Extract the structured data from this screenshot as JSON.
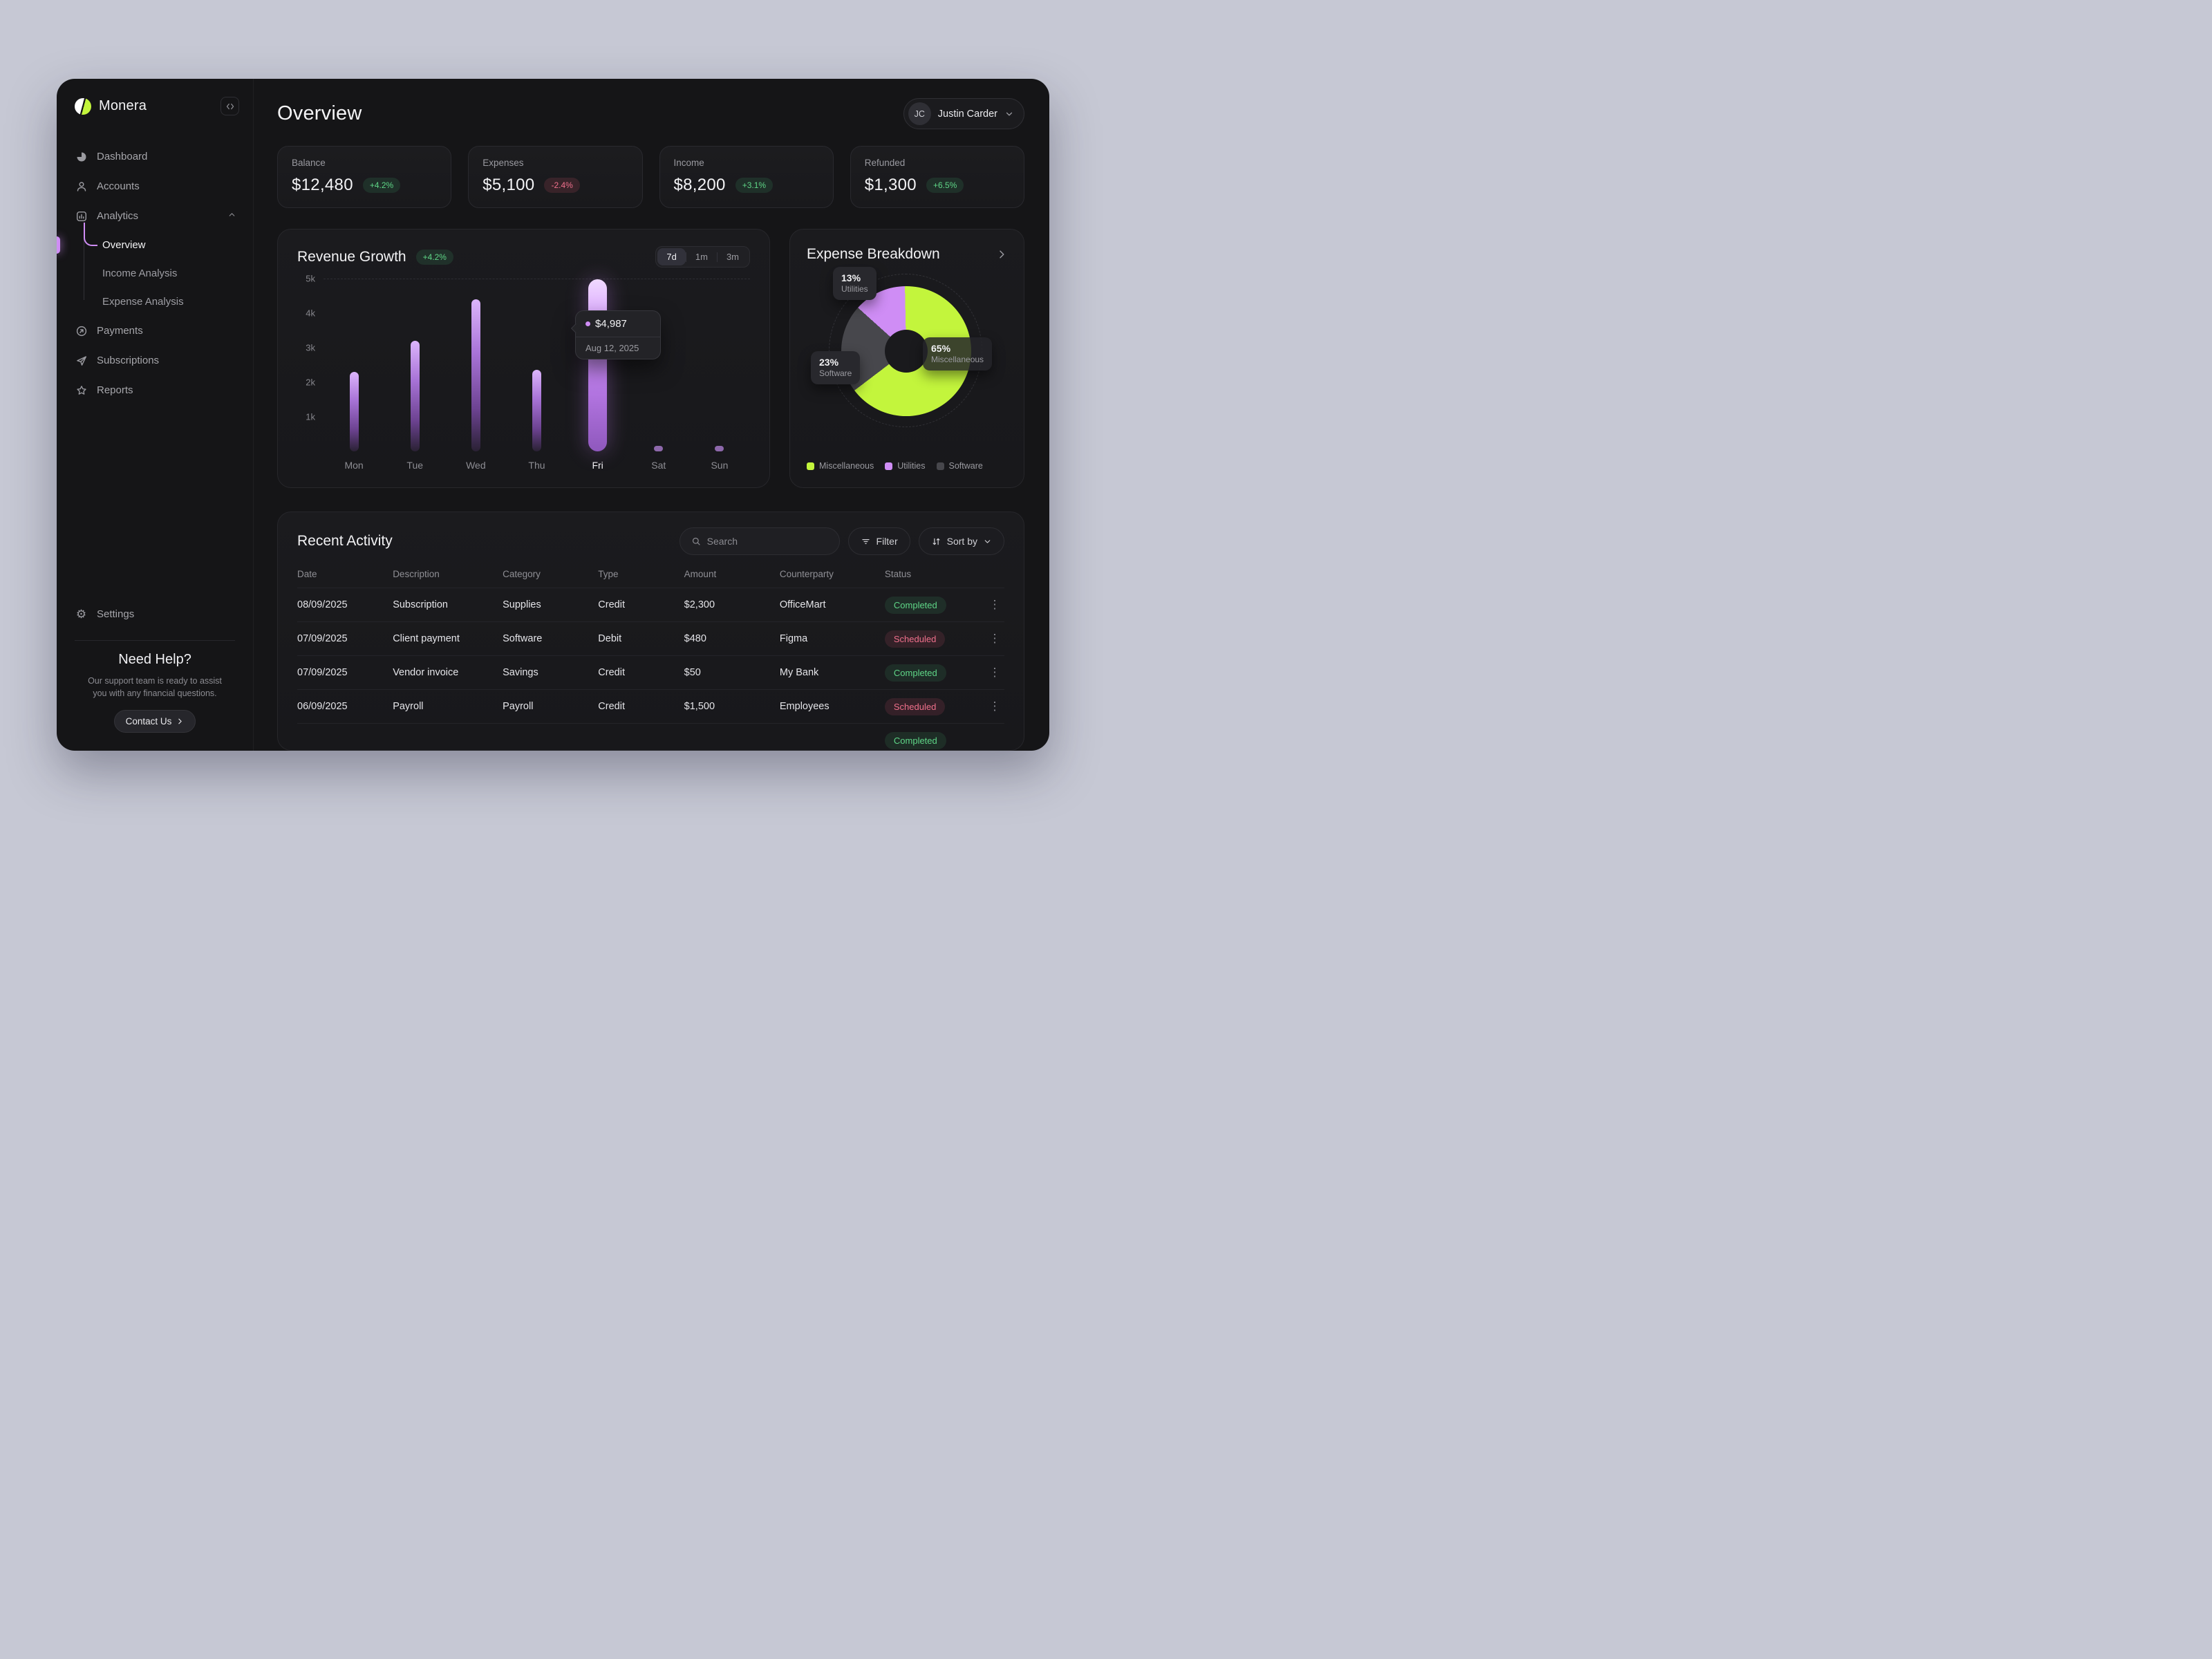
{
  "colors": {
    "accent_lime": "#c3f53c",
    "accent_purple": "#cf8df5",
    "positive_green": "#5fd687",
    "negative_red": "#f0708c",
    "software_gray": "#47474c"
  },
  "brand": {
    "name": "Monera"
  },
  "sidebar": {
    "items_top": [
      "Dashboard",
      "Accounts"
    ],
    "analytics": {
      "label": "Analytics",
      "children": [
        "Overview",
        "Income Analysis",
        "Expense Analysis"
      ]
    },
    "items_bottom": [
      "Payments",
      "Subscriptions",
      "Reports"
    ],
    "settings": "Settings",
    "help": {
      "title": "Need Help?",
      "line1": "Our support team is ready to assist",
      "line2": "you with any financial questions.",
      "cta": "Contact Us"
    }
  },
  "header": {
    "title": "Overview",
    "user": {
      "initials": "JC",
      "name": "Justin Carder"
    }
  },
  "stats": [
    {
      "label": "Balance",
      "value": "$12,480",
      "delta": "+4.2%"
    },
    {
      "label": "Expenses",
      "value": "$5,100",
      "delta": "-2.4%"
    },
    {
      "label": "Income",
      "value": "$8,200",
      "delta": "+3.1%"
    },
    {
      "label": "Refunded",
      "value": "$1,300",
      "delta": "+6.5%"
    }
  ],
  "revenue": {
    "title": "Revenue Growth",
    "badge": "+4.2%",
    "ranges": [
      "7d",
      "1m",
      "3m"
    ],
    "selected_range": "7d",
    "y_ticks": [
      "5k",
      "4k",
      "3k",
      "2k",
      "1k"
    ],
    "tooltip": {
      "amount": "$4,987",
      "date": "Aug 12, 2025"
    }
  },
  "breakdown": {
    "title": "Expense Breakdown",
    "chips": [
      {
        "pct": "13%",
        "label": "Utilities"
      },
      {
        "pct": "23%",
        "label": "Software"
      },
      {
        "pct": "65%",
        "label": "Miscellaneous"
      }
    ],
    "legend": [
      {
        "label": "Miscellaneous",
        "color": "#c3f53c"
      },
      {
        "label": "Utilities",
        "color": "#cf8df5"
      },
      {
        "label": "Software",
        "color": "#47474c"
      }
    ]
  },
  "chart_data": [
    {
      "type": "bar",
      "title": "Revenue Growth",
      "categories": [
        "Mon",
        "Tue",
        "Wed",
        "Thu",
        "Fri",
        "Sat",
        "Sun"
      ],
      "values": [
        2300,
        3200,
        4400,
        2350,
        4987,
        150,
        150
      ],
      "ylim": [
        0,
        5000
      ],
      "y_tick_labels": [
        "5k",
        "4k",
        "3k",
        "2k",
        "1k"
      ],
      "highlight_index": 4,
      "annotation": {
        "value": "$4,987",
        "date": "Aug 12, 2025"
      },
      "range_options": [
        "7d",
        "1m",
        "3m"
      ],
      "selected_range": "7d"
    },
    {
      "type": "pie",
      "title": "Expense Breakdown",
      "start_deg": -48,
      "slices": [
        {
          "label": "Utilities",
          "value": 13,
          "color": "#cf8df5"
        },
        {
          "label": "Miscellaneous",
          "value": 65,
          "color": "#c3f53c"
        },
        {
          "label": "Software",
          "value": 23,
          "color": "#47474c"
        }
      ],
      "legend_position": "bottom"
    }
  ],
  "activity": {
    "title": "Recent Activity",
    "search_placeholder": "Search",
    "filter_label": "Filter",
    "sort_label": "Sort by",
    "columns": [
      "Date",
      "Description",
      "Category",
      "Type",
      "Amount",
      "Counterparty",
      "Status"
    ],
    "rows": [
      {
        "date": "08/09/2025",
        "description": "Subscription",
        "category": "Supplies",
        "type": "Credit",
        "amount": "$2,300",
        "counterparty": "OfficeMart",
        "status": "Completed"
      },
      {
        "date": "07/09/2025",
        "description": "Client payment",
        "category": "Software",
        "type": "Debit",
        "amount": "$480",
        "counterparty": "Figma",
        "status": "Scheduled"
      },
      {
        "date": "07/09/2025",
        "description": "Vendor invoice",
        "category": "Savings",
        "type": "Credit",
        "amount": "$50",
        "counterparty": "My Bank",
        "status": "Completed"
      },
      {
        "date": "06/09/2025",
        "description": "Payroll",
        "category": "Payroll",
        "type": "Credit",
        "amount": "$1,500",
        "counterparty": "Employees",
        "status": "Scheduled"
      },
      {
        "date": "",
        "description": "",
        "category": "",
        "type": "",
        "amount": "",
        "counterparty": "",
        "status": "Completed"
      }
    ]
  }
}
